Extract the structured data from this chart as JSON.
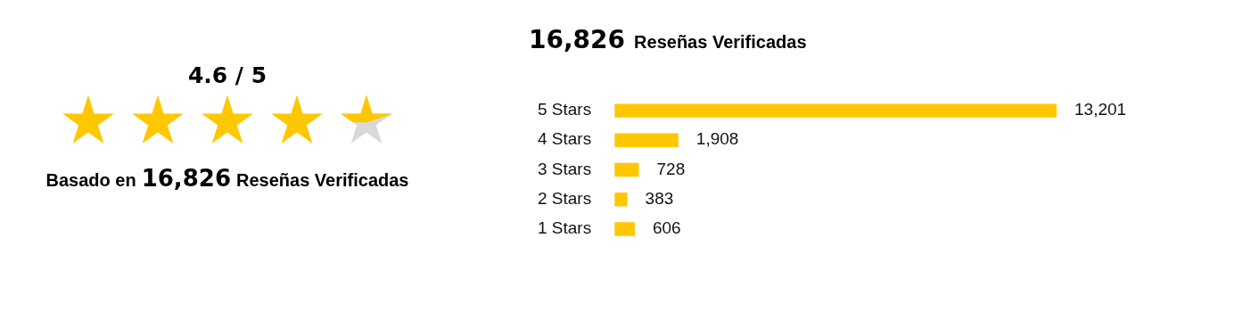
{
  "chart_data": [
    {
      "type": "other",
      "title": "4.6 / 5",
      "annotations": [
        "Basado en",
        "16,826",
        "Reseñas Verificadas"
      ]
    },
    {
      "type": "bar",
      "orientation": "horizontal",
      "title": "16,826",
      "subtitle": "Reseñas Verificadas",
      "categories": [
        "5 Stars",
        "4 Stars",
        "3 Stars",
        "2 Stars",
        "1 Stars"
      ],
      "values": [
        13201,
        1908,
        728,
        383,
        606
      ],
      "value_labels": [
        "13,201",
        "1,908",
        "728",
        "383",
        "606"
      ],
      "color": "#ffc700"
    }
  ]
}
